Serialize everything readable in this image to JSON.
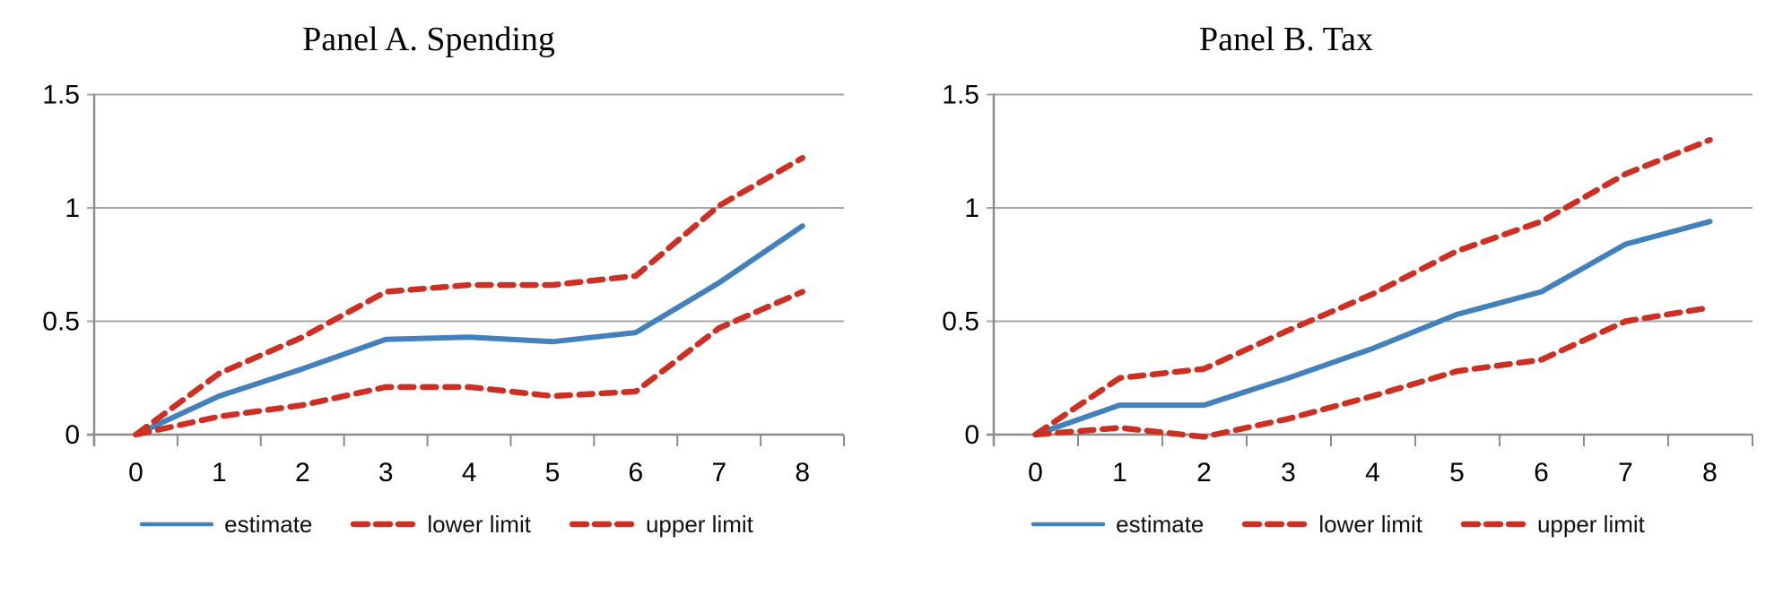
{
  "page": {
    "background": "#FFFFFF"
  },
  "colors": {
    "estimate": "#4381BD",
    "limit": "#CD2F23",
    "gridline": "#A6A6A6",
    "axis": "#8C8C8C",
    "text": "#000000"
  },
  "chart_data": [
    {
      "type": "line",
      "title": "Panel A. Spending",
      "x": [
        "0",
        "1",
        "2",
        "3",
        "4",
        "5",
        "6",
        "7",
        "8"
      ],
      "xlabel": "",
      "ylabel": "",
      "ylim": [
        0,
        1.5
      ],
      "yticks": [
        0,
        0.5,
        1,
        1.5
      ],
      "ytick_labels": [
        "0",
        "0.5",
        "1",
        "1.5"
      ],
      "grid": "horizontal",
      "legend_position": "bottom",
      "series": [
        {
          "name": "estimate",
          "color": "#4381BD",
          "dash": false,
          "values": [
            0,
            0.17,
            0.29,
            0.42,
            0.43,
            0.41,
            0.45,
            0.67,
            0.92
          ]
        },
        {
          "name": "lower limit",
          "color": "#CD2F23",
          "dash": true,
          "values": [
            0,
            0.08,
            0.13,
            0.21,
            0.21,
            0.17,
            0.19,
            0.47,
            0.63
          ]
        },
        {
          "name": "upper limit",
          "color": "#CD2F23",
          "dash": true,
          "values": [
            0,
            0.27,
            0.43,
            0.63,
            0.66,
            0.66,
            0.7,
            1.01,
            1.22
          ]
        }
      ]
    },
    {
      "type": "line",
      "title": "Panel B. Tax",
      "x": [
        "0",
        "1",
        "2",
        "3",
        "4",
        "5",
        "6",
        "7",
        "8"
      ],
      "xlabel": "",
      "ylabel": "",
      "ylim": [
        0,
        1.5
      ],
      "yticks": [
        0,
        0.5,
        1,
        1.5
      ],
      "ytick_labels": [
        "0",
        "0.5",
        "1",
        "1.5"
      ],
      "grid": "horizontal",
      "legend_position": "bottom",
      "series": [
        {
          "name": "estimate",
          "color": "#4381BD",
          "dash": false,
          "values": [
            0,
            0.13,
            0.13,
            0.25,
            0.38,
            0.53,
            0.63,
            0.84,
            0.94
          ]
        },
        {
          "name": "lower limit",
          "color": "#CD2F23",
          "dash": true,
          "values": [
            0,
            0.03,
            -0.01,
            0.07,
            0.17,
            0.28,
            0.33,
            0.5,
            0.56
          ]
        },
        {
          "name": "upper limit",
          "color": "#CD2F23",
          "dash": true,
          "values": [
            0,
            0.25,
            0.29,
            0.46,
            0.62,
            0.81,
            0.94,
            1.15,
            1.3
          ]
        }
      ]
    }
  ]
}
